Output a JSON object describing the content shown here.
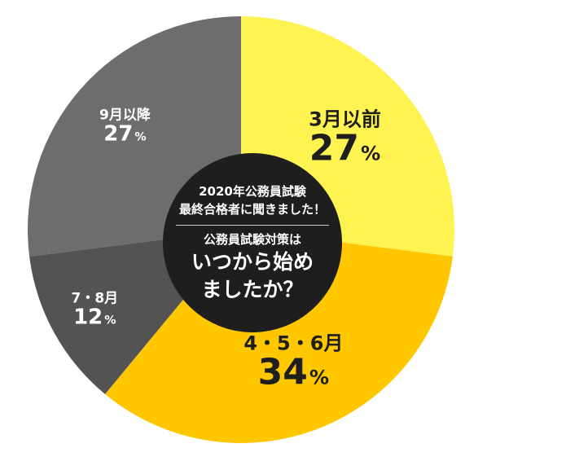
{
  "chart_data": {
    "type": "pie",
    "style": "donut",
    "unit": "%",
    "colors": [
      "#fff352",
      "#ffc700",
      "#535353",
      "#6d6d6f"
    ],
    "categories": [
      "3月以前",
      "4・5・6月",
      "7・8月",
      "9月以降"
    ],
    "values": [
      27,
      34,
      12,
      27
    ],
    "center_text": {
      "lines_small": [
        "2020年公務員試験",
        "最終合格者に聞きました！"
      ],
      "line_mid": "公務員試験対策は",
      "lines_big": [
        "いつから始め",
        "ましたか？"
      ]
    }
  }
}
